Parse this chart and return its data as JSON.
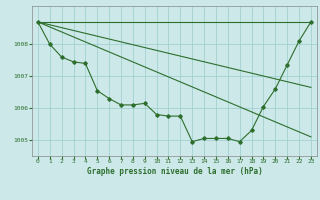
{
  "title": "Graphe pression niveau de la mer (hPa)",
  "bg_color": "#cce8e8",
  "grid_color": "#99cccc",
  "line_color": "#2d6e2d",
  "marker_color": "#2d6e2d",
  "xlim": [
    -0.5,
    23.5
  ],
  "ylim": [
    1004.5,
    1009.2
  ],
  "yticks": [
    1005,
    1006,
    1007,
    1008
  ],
  "xticks": [
    0,
    1,
    2,
    3,
    4,
    5,
    6,
    7,
    8,
    9,
    10,
    11,
    12,
    13,
    14,
    15,
    16,
    17,
    18,
    19,
    20,
    21,
    22,
    23
  ],
  "series": [
    [
      0,
      1008.7
    ],
    [
      1,
      1008.0
    ],
    [
      2,
      1007.6
    ],
    [
      3,
      1007.45
    ],
    [
      4,
      1007.4
    ],
    [
      5,
      1006.55
    ],
    [
      6,
      1006.3
    ],
    [
      7,
      1006.1
    ],
    [
      8,
      1006.1
    ],
    [
      9,
      1006.15
    ],
    [
      10,
      1005.8
    ],
    [
      11,
      1005.75
    ],
    [
      12,
      1005.75
    ],
    [
      13,
      1004.95
    ],
    [
      14,
      1005.05
    ],
    [
      15,
      1005.05
    ],
    [
      16,
      1005.05
    ],
    [
      17,
      1004.95
    ],
    [
      18,
      1005.3
    ],
    [
      19,
      1006.05
    ],
    [
      20,
      1006.6
    ],
    [
      21,
      1007.35
    ],
    [
      22,
      1008.1
    ],
    [
      23,
      1008.7
    ]
  ],
  "ref_line1": [
    [
      0,
      1008.7
    ],
    [
      23,
      1008.7
    ]
  ],
  "ref_line2": [
    [
      0,
      1008.7
    ],
    [
      23,
      1006.65
    ]
  ],
  "ref_line3": [
    [
      0,
      1008.7
    ],
    [
      23,
      1005.1
    ]
  ]
}
